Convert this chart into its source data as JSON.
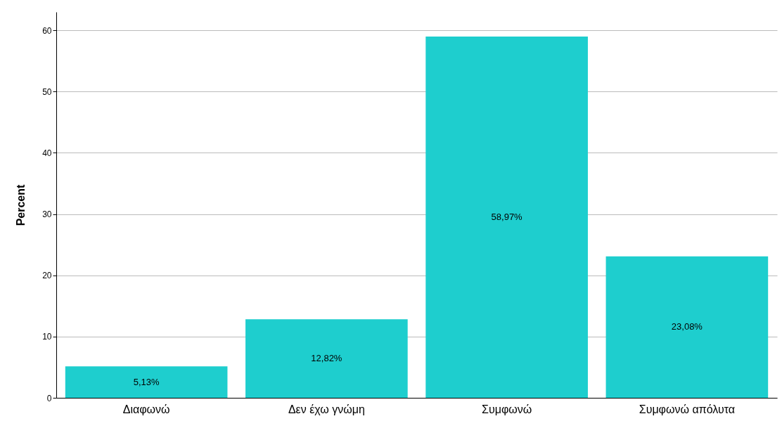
{
  "chart_data": {
    "type": "bar",
    "ylabel": "Percent",
    "categories": [
      "Διαφωνώ",
      "Δεν έχω γνώμη",
      "Συμφωνώ",
      "Συμφωνώ απόλυτα"
    ],
    "values": [
      5.13,
      12.82,
      58.97,
      23.08
    ],
    "value_labels": [
      "5,13%",
      "12,82%",
      "58,97%",
      "23,08%"
    ],
    "color": "#1ecece",
    "ylim": [
      0,
      63
    ],
    "yticks": [
      0,
      10,
      20,
      30,
      40,
      50,
      60
    ],
    "grid": "y"
  }
}
